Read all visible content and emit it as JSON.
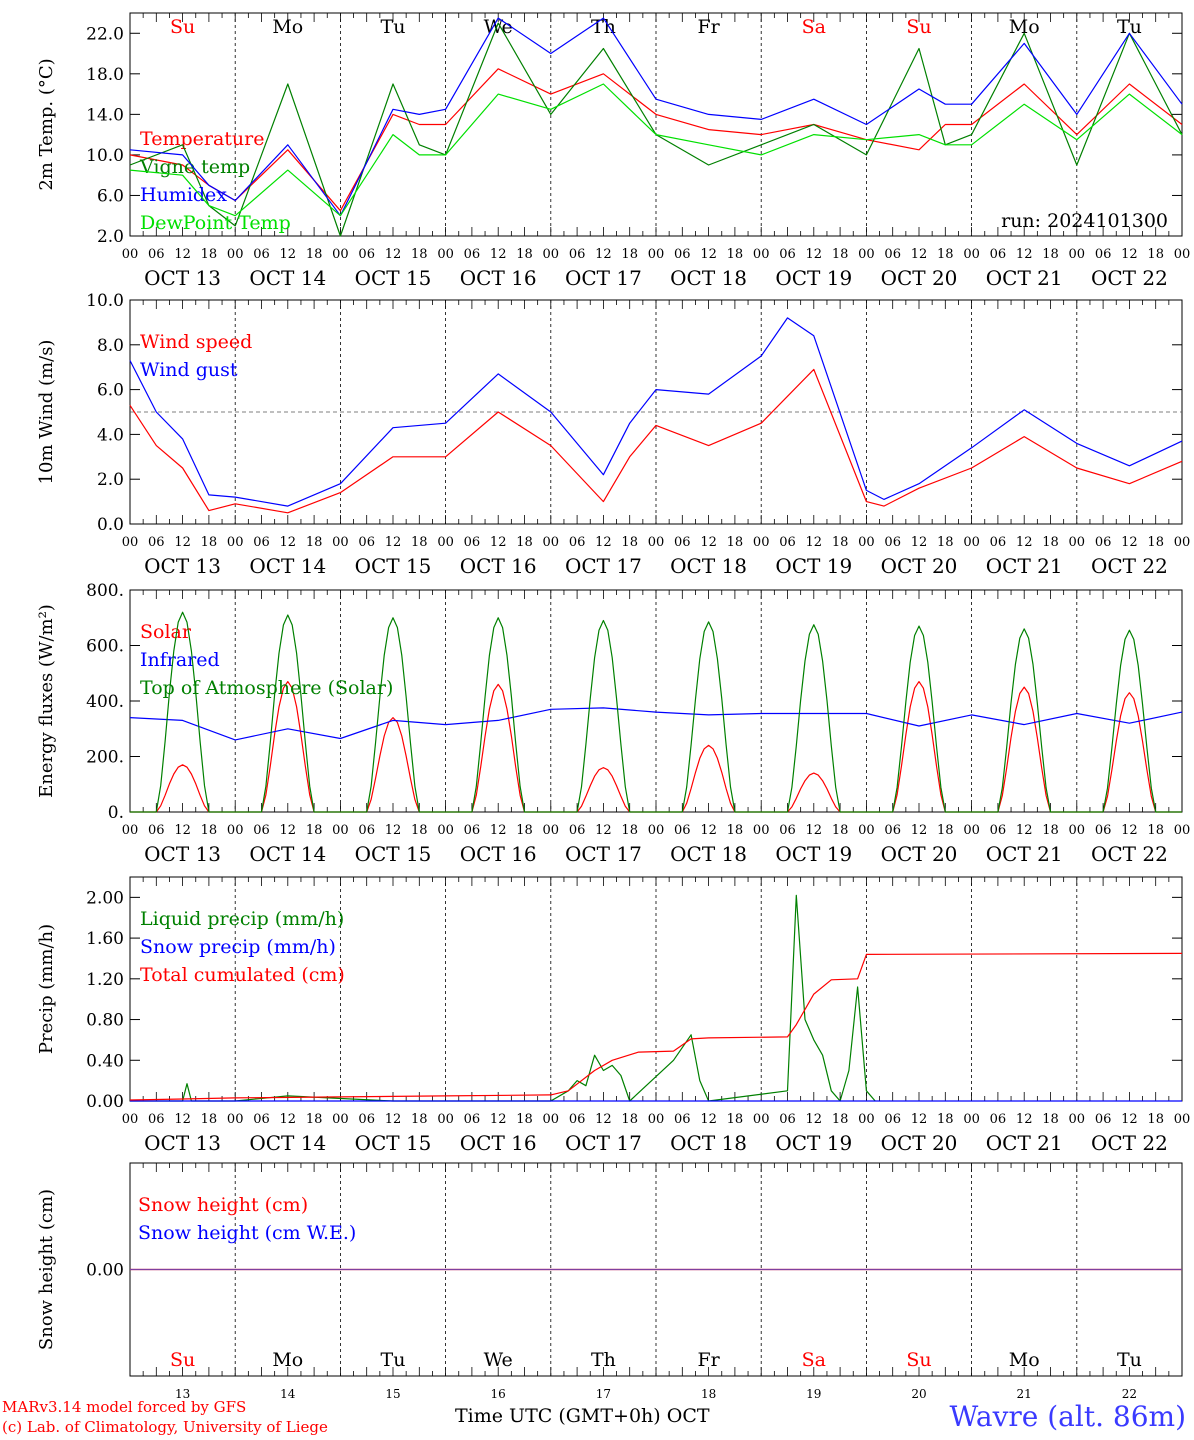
{
  "days": [
    {
      "weekday": "Su",
      "date": "OCT 13",
      "num": "13",
      "weekend": true
    },
    {
      "weekday": "Mo",
      "date": "OCT 14",
      "num": "14",
      "weekend": false
    },
    {
      "weekday": "Tu",
      "date": "OCT 15",
      "num": "15",
      "weekend": false
    },
    {
      "weekday": "We",
      "date": "OCT 16",
      "num": "16",
      "weekend": false
    },
    {
      "weekday": "Th",
      "date": "OCT 17",
      "num": "17",
      "weekend": false
    },
    {
      "weekday": "Fr",
      "date": "OCT 18",
      "num": "18",
      "weekend": false
    },
    {
      "weekday": "Sa",
      "date": "OCT 19",
      "num": "19",
      "weekend": true
    },
    {
      "weekday": "Su",
      "date": "OCT 20",
      "num": "20",
      "weekend": true
    },
    {
      "weekday": "Mo",
      "date": "OCT 21",
      "num": "21",
      "weekend": false
    },
    {
      "weekday": "Tu",
      "date": "OCT 22",
      "num": "22",
      "weekend": false
    }
  ],
  "hour_ticks": [
    "00",
    "06",
    "12",
    "18"
  ],
  "final_hour": "00",
  "colors": {
    "red": "#ff0000",
    "green": "#008000",
    "blue": "#0000ff",
    "lightgreen": "#00e000",
    "purple": "#7f3f9f",
    "axis": "#000000"
  },
  "footer": {
    "credit1": "MARv3.14 model forced by GFS",
    "credit2": "(c) Lab. of Climatology, University of Liege",
    "xlabel": "Time UTC (GMT+0h)",
    "month": "OCT",
    "station": "Wavre (alt. 86m)"
  },
  "chart_data": [
    {
      "type": "line",
      "ylabel": "2m Temp. (°C)",
      "ylim": [
        2,
        24
      ],
      "yticks": [
        "2.0",
        "6.0",
        "10.0",
        "14.0",
        "18.0",
        "22.0"
      ],
      "run": "run: 2024101300",
      "x_unit": "hours since OCT 13 00 UTC",
      "series": [
        {
          "name": "Temperature",
          "color": "red",
          "x": [
            0,
            12,
            18,
            24,
            36,
            48,
            60,
            66,
            72,
            84,
            96,
            108,
            120,
            132,
            144,
            156,
            168,
            180,
            186,
            192,
            204,
            216,
            228,
            240
          ],
          "y": [
            10,
            9,
            7,
            5.5,
            10.5,
            4.5,
            14,
            13,
            13,
            18.5,
            16,
            18,
            14,
            12.5,
            12,
            13,
            11.5,
            10.5,
            13,
            13,
            17,
            12,
            17,
            13
          ]
        },
        {
          "name": "Vigne temp",
          "color": "green",
          "x": [
            0,
            12,
            18,
            24,
            36,
            48,
            60,
            66,
            72,
            84,
            96,
            108,
            120,
            132,
            144,
            156,
            168,
            180,
            186,
            192,
            204,
            216,
            228,
            240
          ],
          "y": [
            9,
            11,
            5,
            3,
            17,
            2,
            17,
            11,
            10,
            23,
            14,
            20.5,
            12,
            9,
            11,
            13,
            10,
            20.5,
            11,
            12,
            22,
            9,
            22,
            12
          ]
        },
        {
          "name": "Humidex",
          "color": "blue",
          "x": [
            0,
            12,
            18,
            24,
            36,
            48,
            60,
            66,
            72,
            84,
            96,
            108,
            120,
            132,
            144,
            156,
            168,
            180,
            186,
            192,
            204,
            216,
            228,
            240
          ],
          "y": [
            10.5,
            10,
            7,
            5.5,
            11,
            4,
            14.5,
            14,
            14.5,
            23.5,
            20,
            23.5,
            15.5,
            14,
            13.5,
            15.5,
            13,
            16.5,
            15,
            15,
            21,
            14,
            22,
            15
          ]
        },
        {
          "name": "DewPoint Temp",
          "color": "lightgreen",
          "x": [
            0,
            12,
            18,
            24,
            36,
            48,
            60,
            66,
            72,
            84,
            96,
            108,
            120,
            132,
            144,
            156,
            168,
            180,
            186,
            192,
            204,
            216,
            228,
            240
          ],
          "y": [
            8.5,
            8,
            5,
            4,
            8.5,
            4,
            12,
            10,
            10,
            16,
            14.5,
            17,
            12,
            11,
            10,
            12,
            11.5,
            12,
            11,
            11,
            15,
            11.5,
            16,
            12
          ]
        }
      ]
    },
    {
      "type": "line",
      "ylabel": "10m Wind (m/s)",
      "ylim": [
        0,
        10
      ],
      "yticks": [
        "0.0",
        "2.0",
        "4.0",
        "6.0",
        "8.0",
        "10.0"
      ],
      "ref_line": 5,
      "series": [
        {
          "name": "Wind speed",
          "color": "red",
          "x": [
            0,
            6,
            12,
            18,
            24,
            36,
            48,
            60,
            72,
            84,
            96,
            108,
            114,
            120,
            132,
            144,
            156,
            168,
            172,
            180,
            192,
            204,
            216,
            228,
            240
          ],
          "y": [
            5.3,
            3.5,
            2.5,
            0.6,
            0.9,
            0.5,
            1.4,
            3,
            3,
            5,
            3.5,
            1,
            3,
            4.4,
            3.5,
            4.5,
            6.9,
            1,
            0.8,
            1.6,
            2.5,
            3.9,
            2.5,
            1.8,
            2.8
          ]
        },
        {
          "name": "Wind gust",
          "color": "blue",
          "x": [
            0,
            6,
            12,
            18,
            24,
            36,
            48,
            60,
            72,
            84,
            96,
            108,
            114,
            120,
            132,
            144,
            150,
            156,
            168,
            172,
            180,
            192,
            204,
            216,
            228,
            240
          ],
          "y": [
            7.3,
            5,
            3.8,
            1.3,
            1.2,
            0.8,
            1.8,
            4.3,
            4.5,
            6.7,
            5,
            2.2,
            4.5,
            6,
            5.8,
            7.5,
            9.2,
            8.4,
            1.5,
            1.1,
            1.8,
            3.4,
            5.1,
            3.6,
            2.6,
            3.7
          ]
        }
      ]
    },
    {
      "type": "line",
      "ylabel": "Energy fluxes (W/m²)",
      "ylim": [
        0,
        800
      ],
      "yticks": [
        "0.",
        "200.",
        "400.",
        "600.",
        "800."
      ],
      "series": [
        {
          "name": "Solar",
          "color": "red",
          "peaks": [
            [
              12,
              170
            ],
            [
              36,
              470
            ],
            [
              60,
              340
            ],
            [
              84,
              460
            ],
            [
              108,
              160
            ],
            [
              132,
              240
            ],
            [
              156,
              140
            ],
            [
              180,
              470
            ],
            [
              204,
              450
            ],
            [
              228,
              430
            ]
          ]
        },
        {
          "name": "Infrared",
          "color": "blue",
          "x": [
            0,
            12,
            24,
            36,
            48,
            60,
            72,
            84,
            96,
            108,
            120,
            132,
            144,
            156,
            168,
            180,
            192,
            204,
            216,
            228,
            240
          ],
          "y": [
            340,
            330,
            260,
            300,
            265,
            330,
            315,
            330,
            370,
            375,
            360,
            350,
            355,
            355,
            355,
            310,
            350,
            315,
            355,
            320,
            360
          ]
        },
        {
          "name": "Top of Atmosphere (Solar)",
          "color": "green",
          "peaks": [
            [
              12,
              720
            ],
            [
              36,
              710
            ],
            [
              60,
              700
            ],
            [
              84,
              700
            ],
            [
              108,
              690
            ],
            [
              132,
              685
            ],
            [
              156,
              675
            ],
            [
              180,
              670
            ],
            [
              204,
              660
            ],
            [
              228,
              655
            ]
          ]
        }
      ]
    },
    {
      "type": "line",
      "ylabel": "Precip (mm/h)",
      "ylim": [
        0,
        2.2
      ],
      "yticks": [
        "0.00",
        "0.40",
        "0.80",
        "1.20",
        "1.60",
        "2.00"
      ],
      "series": [
        {
          "name": "Liquid precip (mm/h)",
          "color": "green",
          "x": [
            0,
            12,
            13,
            14,
            24,
            36,
            60,
            96,
            100,
            102,
            104,
            106,
            108,
            110,
            112,
            114,
            124,
            128,
            130,
            132,
            150,
            152,
            154,
            156,
            158,
            160,
            162,
            164,
            166,
            168,
            170
          ],
          "y": [
            0,
            0,
            0.17,
            0,
            0,
            0.05,
            0,
            0,
            0.1,
            0.2,
            0.15,
            0.45,
            0.3,
            0.35,
            0.25,
            0,
            0.4,
            0.65,
            0.2,
            0,
            0.1,
            2.02,
            0.8,
            0.6,
            0.45,
            0.1,
            0,
            0.3,
            1.12,
            0.1,
            0
          ]
        },
        {
          "name": "Snow precip (mm/h)",
          "color": "blue",
          "x": [
            0,
            240
          ],
          "y": [
            0,
            0
          ]
        },
        {
          "name": "Total cumulated (cm)",
          "color": "red",
          "x": [
            0,
            12,
            24,
            48,
            72,
            96,
            100,
            106,
            110,
            116,
            124,
            128,
            132,
            150,
            152,
            156,
            160,
            166,
            168,
            240
          ],
          "y": [
            0.01,
            0.02,
            0.03,
            0.04,
            0.05,
            0.06,
            0.1,
            0.3,
            0.4,
            0.48,
            0.49,
            0.61,
            0.62,
            0.63,
            0.75,
            1.05,
            1.19,
            1.2,
            1.44,
            1.45
          ]
        }
      ]
    },
    {
      "type": "line",
      "ylabel": "Snow height (cm)",
      "ylim": [
        -1,
        1
      ],
      "yticks": [
        "0.00"
      ],
      "series": [
        {
          "name": "Snow height (cm)",
          "color": "red",
          "x": [
            0,
            240
          ],
          "y": [
            0,
            0
          ]
        },
        {
          "name": "Snow height (cm W.E.)",
          "color": "blue",
          "x": [
            0,
            240
          ],
          "y": [
            0,
            0
          ]
        }
      ]
    }
  ]
}
